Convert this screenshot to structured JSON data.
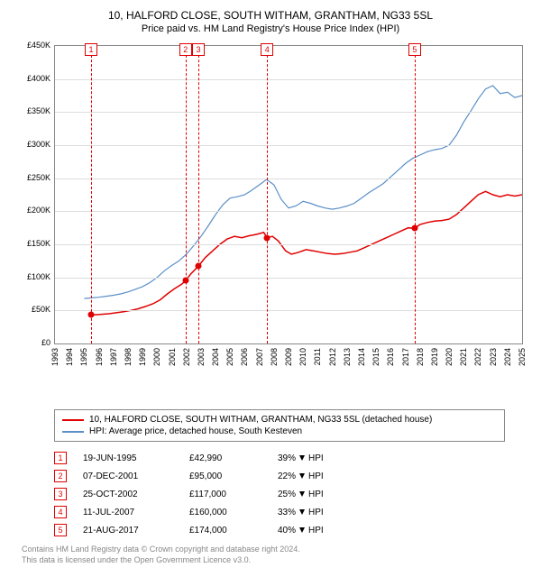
{
  "title": {
    "main": "10, HALFORD CLOSE, SOUTH WITHAM, GRANTHAM, NG33 5SL",
    "sub": "Price paid vs. HM Land Registry's House Price Index (HPI)"
  },
  "chart": {
    "type": "line",
    "plot_bg": "#ffffff",
    "border_color": "#888888",
    "grid_color": "#dddddd",
    "x": {
      "min": 1993,
      "max": 2025,
      "step": 1
    },
    "y": {
      "min": 0,
      "max": 450000,
      "step": 50000,
      "prefix": "£",
      "suffix_k": "K"
    },
    "marker_color": "#e00000",
    "series": [
      {
        "id": "property",
        "color": "#e00000",
        "width": 1.5,
        "label": "10, HALFORD CLOSE, SOUTH WITHAM, GRANTHAM, NG33 5SL (detached house)",
        "points": [
          [
            1995.47,
            42990
          ],
          [
            1995.8,
            43500
          ],
          [
            1996.2,
            44200
          ],
          [
            1996.7,
            45000
          ],
          [
            1997.2,
            46500
          ],
          [
            1997.7,
            48000
          ],
          [
            1998.2,
            50000
          ],
          [
            1998.7,
            52500
          ],
          [
            1999.2,
            56000
          ],
          [
            1999.7,
            60000
          ],
          [
            2000.2,
            66000
          ],
          [
            2000.7,
            75000
          ],
          [
            2001.2,
            83000
          ],
          [
            2001.7,
            90000
          ],
          [
            2001.94,
            95000
          ],
          [
            2002.3,
            105000
          ],
          [
            2002.82,
            117000
          ],
          [
            2003.3,
            130000
          ],
          [
            2003.8,
            140000
          ],
          [
            2004.3,
            150000
          ],
          [
            2004.8,
            158000
          ],
          [
            2005.3,
            162000
          ],
          [
            2005.8,
            160000
          ],
          [
            2006.3,
            163000
          ],
          [
            2006.8,
            165000
          ],
          [
            2007.3,
            168000
          ],
          [
            2007.53,
            160000
          ],
          [
            2007.9,
            162000
          ],
          [
            2008.3,
            155000
          ],
          [
            2008.8,
            140000
          ],
          [
            2009.2,
            135000
          ],
          [
            2009.7,
            138000
          ],
          [
            2010.2,
            142000
          ],
          [
            2010.7,
            140000
          ],
          [
            2011.2,
            138000
          ],
          [
            2011.7,
            136000
          ],
          [
            2012.2,
            135000
          ],
          [
            2012.7,
            136000
          ],
          [
            2013.2,
            138000
          ],
          [
            2013.7,
            140000
          ],
          [
            2014.2,
            145000
          ],
          [
            2014.7,
            150000
          ],
          [
            2015.2,
            155000
          ],
          [
            2015.7,
            160000
          ],
          [
            2016.2,
            165000
          ],
          [
            2016.7,
            170000
          ],
          [
            2017.2,
            175000
          ],
          [
            2017.64,
            174000
          ],
          [
            2018.0,
            180000
          ],
          [
            2018.5,
            183000
          ],
          [
            2019.0,
            185000
          ],
          [
            2019.5,
            186000
          ],
          [
            2020.0,
            188000
          ],
          [
            2020.5,
            195000
          ],
          [
            2021.0,
            205000
          ],
          [
            2021.5,
            215000
          ],
          [
            2022.0,
            225000
          ],
          [
            2022.5,
            230000
          ],
          [
            2023.0,
            225000
          ],
          [
            2023.5,
            222000
          ],
          [
            2024.0,
            225000
          ],
          [
            2024.5,
            223000
          ],
          [
            2025.0,
            225000
          ]
        ],
        "markers": [
          {
            "n": 1,
            "x": 1995.47,
            "y": 42990
          },
          {
            "n": 2,
            "x": 2001.94,
            "y": 95000
          },
          {
            "n": 3,
            "x": 2002.82,
            "y": 117000
          },
          {
            "n": 4,
            "x": 2007.53,
            "y": 160000
          },
          {
            "n": 5,
            "x": 2017.64,
            "y": 174000
          }
        ]
      },
      {
        "id": "hpi",
        "color": "#5b8fc7",
        "width": 1.2,
        "label": "HPI: Average price, detached house, South Kesteven",
        "points": [
          [
            1995.0,
            68000
          ],
          [
            1995.5,
            69000
          ],
          [
            1996.0,
            70000
          ],
          [
            1996.5,
            71500
          ],
          [
            1997.0,
            73000
          ],
          [
            1997.5,
            75000
          ],
          [
            1998.0,
            78000
          ],
          [
            1998.5,
            82000
          ],
          [
            1999.0,
            86000
          ],
          [
            1999.5,
            92000
          ],
          [
            2000.0,
            100000
          ],
          [
            2000.5,
            110000
          ],
          [
            2001.0,
            118000
          ],
          [
            2001.5,
            125000
          ],
          [
            2002.0,
            135000
          ],
          [
            2002.5,
            148000
          ],
          [
            2003.0,
            162000
          ],
          [
            2003.5,
            178000
          ],
          [
            2004.0,
            195000
          ],
          [
            2004.5,
            210000
          ],
          [
            2005.0,
            220000
          ],
          [
            2005.5,
            222000
          ],
          [
            2006.0,
            225000
          ],
          [
            2006.5,
            232000
          ],
          [
            2007.0,
            240000
          ],
          [
            2007.5,
            248000
          ],
          [
            2008.0,
            240000
          ],
          [
            2008.5,
            218000
          ],
          [
            2009.0,
            205000
          ],
          [
            2009.5,
            208000
          ],
          [
            2010.0,
            215000
          ],
          [
            2010.5,
            212000
          ],
          [
            2011.0,
            208000
          ],
          [
            2011.5,
            205000
          ],
          [
            2012.0,
            203000
          ],
          [
            2012.5,
            205000
          ],
          [
            2013.0,
            208000
          ],
          [
            2013.5,
            212000
          ],
          [
            2014.0,
            220000
          ],
          [
            2014.5,
            228000
          ],
          [
            2015.0,
            235000
          ],
          [
            2015.5,
            242000
          ],
          [
            2016.0,
            252000
          ],
          [
            2016.5,
            262000
          ],
          [
            2017.0,
            272000
          ],
          [
            2017.5,
            280000
          ],
          [
            2018.0,
            285000
          ],
          [
            2018.5,
            290000
          ],
          [
            2019.0,
            293000
          ],
          [
            2019.5,
            295000
          ],
          [
            2020.0,
            300000
          ],
          [
            2020.5,
            315000
          ],
          [
            2021.0,
            335000
          ],
          [
            2021.5,
            352000
          ],
          [
            2022.0,
            370000
          ],
          [
            2022.5,
            385000
          ],
          [
            2023.0,
            390000
          ],
          [
            2023.5,
            378000
          ],
          [
            2024.0,
            380000
          ],
          [
            2024.5,
            372000
          ],
          [
            2025.0,
            375000
          ]
        ]
      }
    ]
  },
  "transactions": [
    {
      "n": "1",
      "date": "19-JUN-1995",
      "price": "£42,990",
      "diff": "39%",
      "dir": "down",
      "hpi": "HPI"
    },
    {
      "n": "2",
      "date": "07-DEC-2001",
      "price": "£95,000",
      "diff": "22%",
      "dir": "down",
      "hpi": "HPI"
    },
    {
      "n": "3",
      "date": "25-OCT-2002",
      "price": "£117,000",
      "diff": "25%",
      "dir": "down",
      "hpi": "HPI"
    },
    {
      "n": "4",
      "date": "11-JUL-2007",
      "price": "£160,000",
      "diff": "33%",
      "dir": "down",
      "hpi": "HPI"
    },
    {
      "n": "5",
      "date": "21-AUG-2017",
      "price": "£174,000",
      "diff": "40%",
      "dir": "down",
      "hpi": "HPI"
    }
  ],
  "footnote": {
    "l1": "Contains HM Land Registry data © Crown copyright and database right 2024.",
    "l2": "This data is licensed under the Open Government Licence v3.0."
  }
}
